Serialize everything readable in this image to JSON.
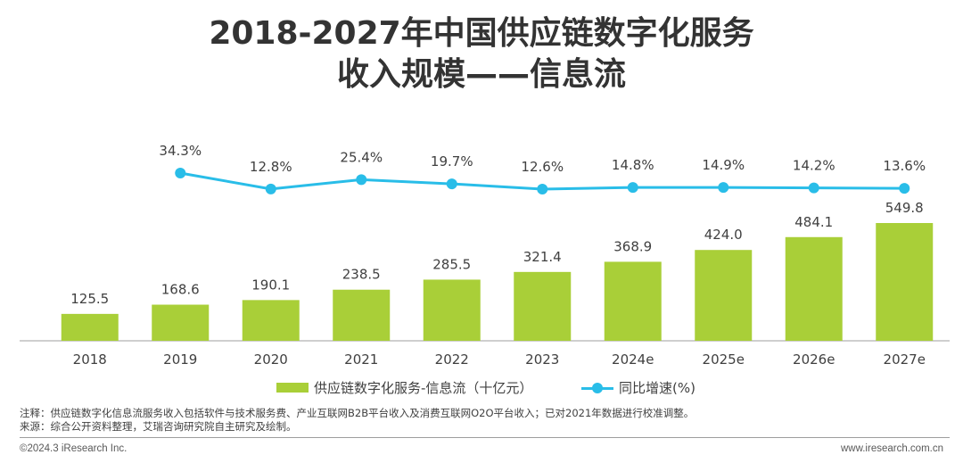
{
  "title": {
    "line1": "2018-2027年中国供应链数字化服务",
    "line2": "收入规模——信息流"
  },
  "colors": {
    "bar": "#a9cf38",
    "line": "#29bde8",
    "axis": "#bfbfbf",
    "text": "#404040"
  },
  "chart_data": {
    "type": "bar",
    "categories": [
      "2018",
      "2019",
      "2020",
      "2021",
      "2022",
      "2023",
      "2024e",
      "2025e",
      "2026e",
      "2027e"
    ],
    "series": [
      {
        "name": "供应链数字化服务-信息流（十亿元）",
        "type": "bar",
        "values": [
          125.5,
          168.6,
          190.1,
          238.5,
          285.5,
          321.4,
          368.9,
          424.0,
          484.1,
          549.8
        ],
        "labels": [
          "125.5",
          "168.6",
          "190.1",
          "238.5",
          "285.5",
          "321.4",
          "368.9",
          "424.0",
          "484.1",
          "549.8"
        ]
      },
      {
        "name": "同比增速(%)",
        "type": "line",
        "values": [
          null,
          34.3,
          12.8,
          25.4,
          19.7,
          12.6,
          14.8,
          14.9,
          14.2,
          13.6
        ],
        "labels": [
          "",
          "34.3%",
          "12.8%",
          "25.4%",
          "19.7%",
          "12.6%",
          "14.8%",
          "14.9%",
          "14.2%",
          "13.6%"
        ]
      }
    ],
    "legend_position": "bottom",
    "grid": false
  },
  "legend": {
    "bar_label": "供应链数字化服务-信息流（十亿元）",
    "line_label": "同比增速(%)"
  },
  "notes": {
    "note": "注释：供应链数字化信息流服务收入包括软件与技术服务费、产业互联网B2B平台收入及消费互联网O2O平台收入；已对2021年数据进行校准调整。",
    "source": "来源：综合公开资料整理，艾瑞咨询研究院自主研究及绘制。"
  },
  "footer": {
    "copyright": "©2024.3 iResearch Inc.",
    "website": "www.iresearch.com.cn"
  }
}
